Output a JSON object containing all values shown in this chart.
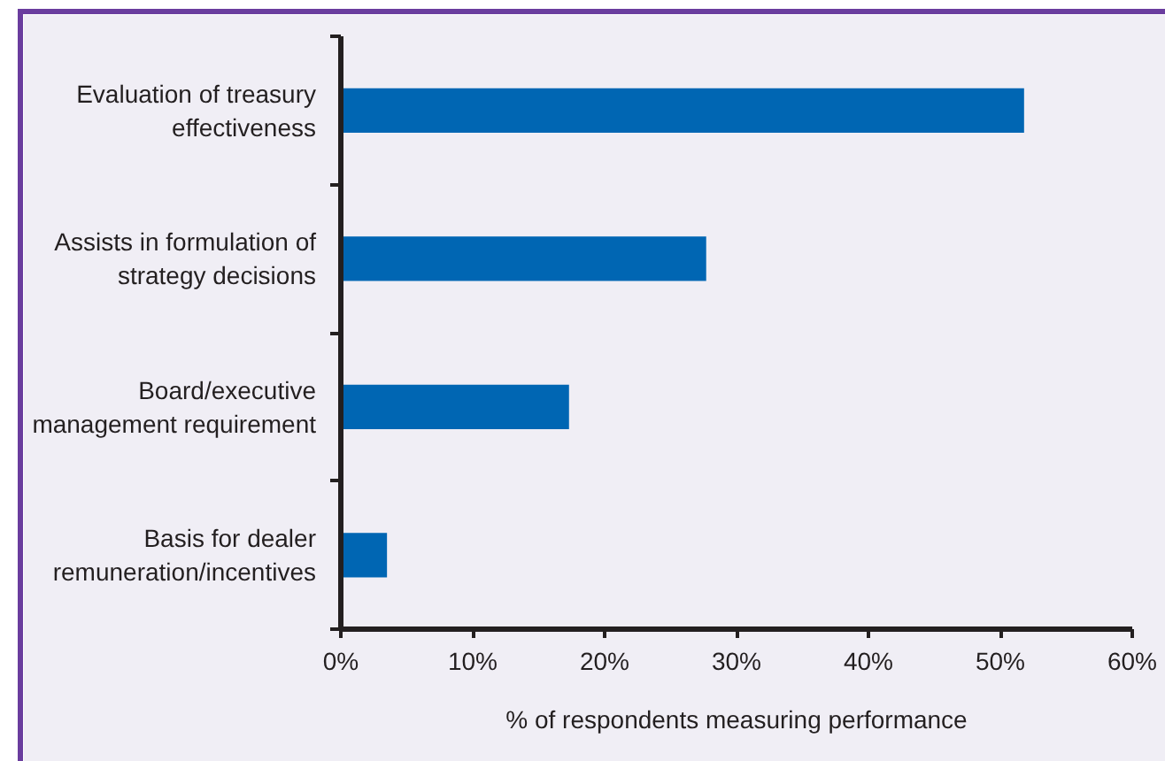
{
  "chart_data": {
    "type": "bar",
    "orientation": "horizontal",
    "categories": [
      "Evaluation of treasury\neffectiveness",
      "Assists in formulation of\nstrategy decisions",
      "Board/executive\nmanagement requirement",
      "Basis for dealer\nremuneration/incentives"
    ],
    "values": [
      51.8,
      27.7,
      17.3,
      3.5
    ],
    "color": "#0066b3",
    "xlabel": "% of respondents measuring performance",
    "xlim": [
      0,
      60
    ],
    "xticks": [
      {
        "value": 0,
        "label": "0%"
      },
      {
        "value": 10,
        "label": "10%"
      },
      {
        "value": 20,
        "label": "20%"
      },
      {
        "value": 30,
        "label": "30%"
      },
      {
        "value": 40,
        "label": "40%"
      },
      {
        "value": 50,
        "label": "50%"
      },
      {
        "value": 60,
        "label": "60%"
      }
    ],
    "grid": false
  }
}
